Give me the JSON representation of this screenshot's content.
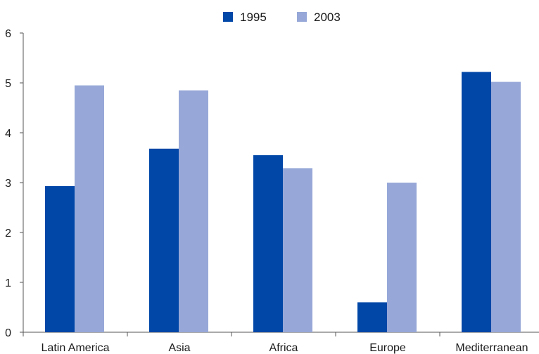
{
  "chart_data": {
    "type": "bar",
    "categories": [
      "Latin America",
      "Asia",
      "Africa",
      "Europe",
      "Mediterranean"
    ],
    "series": [
      {
        "name": "1995",
        "values": [
          2.93,
          3.68,
          3.55,
          0.6,
          5.22
        ],
        "color": "#0047a8"
      },
      {
        "name": "2003",
        "values": [
          4.95,
          4.85,
          3.29,
          3.0,
          5.02
        ],
        "color": "#97a8d8"
      }
    ],
    "ylim": [
      0,
      6
    ],
    "yticks": [
      0,
      1,
      2,
      3,
      4,
      5,
      6
    ],
    "xlabel": "",
    "ylabel": "",
    "title": "",
    "grid": false,
    "legend_position": "top-center"
  }
}
